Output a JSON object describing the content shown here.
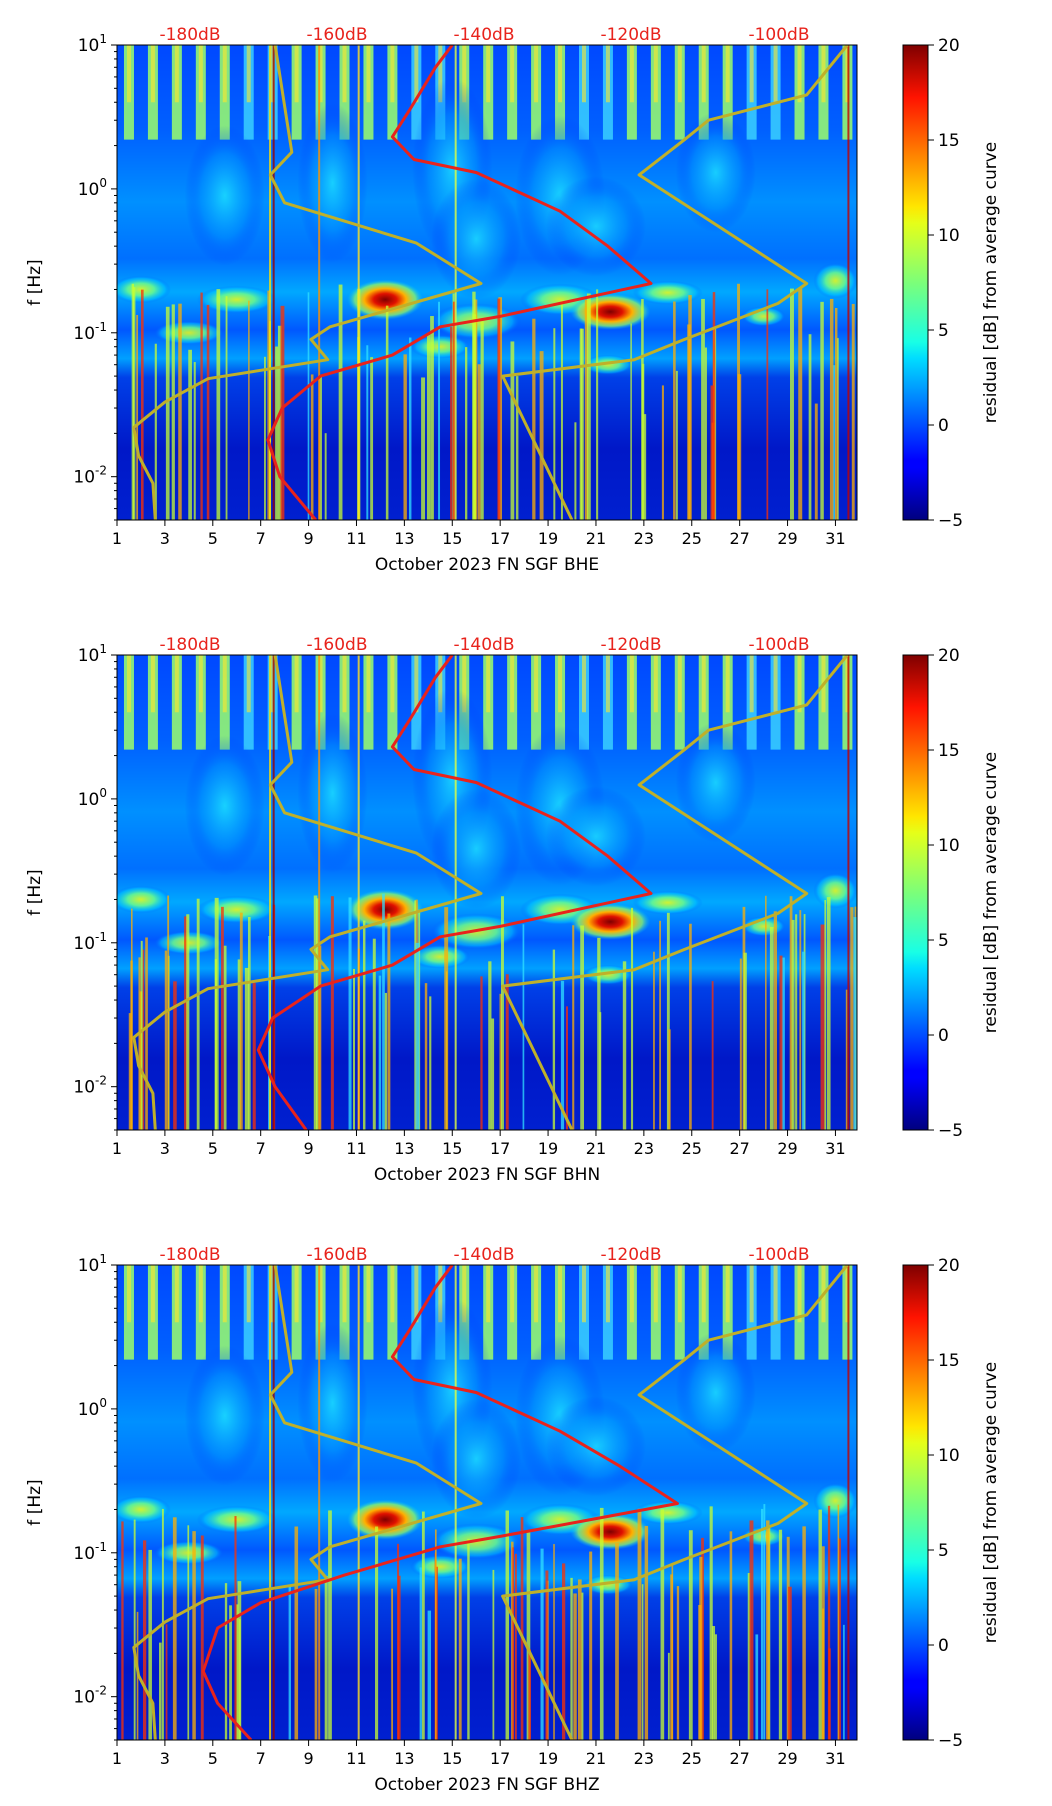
{
  "chart_data": [
    {
      "type": "heatmap",
      "panel": "BHE",
      "xlabel": "October 2023 FN SGF  BHE",
      "ylabel": "f [Hz]",
      "xlim": [
        1,
        31.9
      ],
      "ylim": [
        0.005,
        10
      ],
      "yscale": "log",
      "x_ticks": [
        "1",
        "3",
        "5",
        "7",
        "9",
        "11",
        "13",
        "15",
        "17",
        "19",
        "21",
        "23",
        "25",
        "27",
        "29",
        "31"
      ],
      "y_ticks": [
        {
          "base": "10",
          "exp": "1",
          "value": 10
        },
        {
          "base": "10",
          "exp": "0",
          "value": 1
        },
        {
          "base": "10",
          "exp": "-1",
          "value": 0.1
        },
        {
          "base": "10",
          "exp": "-2",
          "value": 0.01
        }
      ],
      "top_axis_labels": [
        "-180dB",
        "-160dB",
        "-140dB",
        "-120dB",
        "-100dB"
      ],
      "top_axis_values_db": [
        -180,
        -160,
        -140,
        -120,
        -100
      ],
      "colorbar": {
        "label": "residual [dB] from average curve",
        "min": -5,
        "max": 20,
        "ticks": [
          "20",
          "15",
          "10",
          "5",
          "0",
          "−5"
        ]
      },
      "series": [
        {
          "name": "",
          "color": "#bfb02a",
          "points": [
            [
              7.6,
              10
            ],
            [
              8.3,
              1.8
            ],
            [
              7.4,
              1.25
            ],
            [
              8,
              0.8
            ],
            [
              13.5,
              0.42
            ],
            [
              16.2,
              0.22
            ],
            [
              9.9,
              0.11
            ],
            [
              9.1,
              0.09
            ],
            [
              9.8,
              0.065
            ],
            [
              4.8,
              0.048
            ],
            [
              3,
              0.033
            ],
            [
              1.7,
              0.022
            ],
            [
              1.9,
              0.014
            ],
            [
              2.5,
              0.009
            ],
            [
              2.6,
              0.005
            ]
          ]
        },
        {
          "name": "",
          "color": "#bfb02a",
          "points": [
            [
              31.5,
              10
            ],
            [
              29.8,
              4.5
            ],
            [
              25.7,
              3
            ],
            [
              24.7,
              2.2
            ],
            [
              22.8,
              1.25
            ],
            [
              29.8,
              0.22
            ],
            [
              28.6,
              0.16
            ],
            [
              24.7,
              0.09
            ],
            [
              22.6,
              0.065
            ],
            [
              17.1,
              0.05
            ],
            [
              20,
              0.005
            ]
          ]
        },
        {
          "name": "",
          "color": "#e8231c",
          "points": [
            [
              15,
              10
            ],
            [
              14.3,
              7
            ],
            [
              13.2,
              3.5
            ],
            [
              12.5,
              2.3
            ],
            [
              13.4,
              1.6
            ],
            [
              16,
              1.3
            ],
            [
              19.5,
              0.7
            ],
            [
              21.5,
              0.4
            ],
            [
              23.3,
              0.22
            ],
            [
              17,
              0.13
            ],
            [
              14.5,
              0.11
            ],
            [
              12.5,
              0.07
            ],
            [
              9.5,
              0.05
            ],
            [
              7.9,
              0.03
            ],
            [
              7.3,
              0.018
            ],
            [
              7.8,
              0.01
            ],
            [
              9.3,
              0.005
            ]
          ]
        }
      ]
    },
    {
      "type": "heatmap",
      "panel": "BHN",
      "xlabel": "October 2023 FN SGF  BHN",
      "ylabel": "f [Hz]",
      "xlim": [
        1,
        31.9
      ],
      "ylim": [
        0.005,
        10
      ],
      "yscale": "log",
      "x_ticks": [
        "1",
        "3",
        "5",
        "7",
        "9",
        "11",
        "13",
        "15",
        "17",
        "19",
        "21",
        "23",
        "25",
        "27",
        "29",
        "31"
      ],
      "y_ticks": [
        {
          "base": "10",
          "exp": "1",
          "value": 10
        },
        {
          "base": "10",
          "exp": "0",
          "value": 1
        },
        {
          "base": "10",
          "exp": "-1",
          "value": 0.1
        },
        {
          "base": "10",
          "exp": "-2",
          "value": 0.01
        }
      ],
      "top_axis_labels": [
        "-180dB",
        "-160dB",
        "-140dB",
        "-120dB",
        "-100dB"
      ],
      "top_axis_values_db": [
        -180,
        -160,
        -140,
        -120,
        -100
      ],
      "colorbar": {
        "label": "residual [dB] from average curve",
        "min": -5,
        "max": 20,
        "ticks": [
          "20",
          "15",
          "10",
          "5",
          "0",
          "−5"
        ]
      },
      "series": [
        {
          "name": "",
          "color": "#bfb02a",
          "points": [
            [
              7.6,
              10
            ],
            [
              8.3,
              1.8
            ],
            [
              7.4,
              1.25
            ],
            [
              8,
              0.8
            ],
            [
              13.5,
              0.42
            ],
            [
              16.2,
              0.22
            ],
            [
              9.9,
              0.11
            ],
            [
              9.1,
              0.09
            ],
            [
              9.8,
              0.065
            ],
            [
              4.8,
              0.048
            ],
            [
              3,
              0.033
            ],
            [
              1.7,
              0.022
            ],
            [
              1.9,
              0.014
            ],
            [
              2.5,
              0.009
            ],
            [
              2.6,
              0.005
            ]
          ]
        },
        {
          "name": "",
          "color": "#bfb02a",
          "points": [
            [
              31.5,
              10
            ],
            [
              29.8,
              4.5
            ],
            [
              25.7,
              3
            ],
            [
              24.7,
              2.2
            ],
            [
              22.8,
              1.25
            ],
            [
              29.8,
              0.22
            ],
            [
              28.6,
              0.16
            ],
            [
              24.7,
              0.09
            ],
            [
              22.6,
              0.065
            ],
            [
              17.1,
              0.05
            ],
            [
              20,
              0.005
            ]
          ]
        },
        {
          "name": "",
          "color": "#e8231c",
          "points": [
            [
              15,
              10
            ],
            [
              14.3,
              7
            ],
            [
              13.2,
              3.5
            ],
            [
              12.5,
              2.3
            ],
            [
              13.4,
              1.6
            ],
            [
              16,
              1.3
            ],
            [
              19.5,
              0.7
            ],
            [
              21.5,
              0.4
            ],
            [
              23.3,
              0.22
            ],
            [
              17,
              0.13
            ],
            [
              14.5,
              0.11
            ],
            [
              12.5,
              0.07
            ],
            [
              9.5,
              0.05
            ],
            [
              7.5,
              0.03
            ],
            [
              6.9,
              0.018
            ],
            [
              7.6,
              0.01
            ],
            [
              8.9,
              0.005
            ]
          ]
        }
      ]
    },
    {
      "type": "heatmap",
      "panel": "BHZ",
      "xlabel": "October 2023 FN SGF  BHZ",
      "ylabel": "f [Hz]",
      "xlim": [
        1,
        31.9
      ],
      "ylim": [
        0.005,
        10
      ],
      "yscale": "log",
      "x_ticks": [
        "1",
        "3",
        "5",
        "7",
        "9",
        "11",
        "13",
        "15",
        "17",
        "19",
        "21",
        "23",
        "25",
        "27",
        "29",
        "31"
      ],
      "y_ticks": [
        {
          "base": "10",
          "exp": "1",
          "value": 10
        },
        {
          "base": "10",
          "exp": "0",
          "value": 1
        },
        {
          "base": "10",
          "exp": "-1",
          "value": 0.1
        },
        {
          "base": "10",
          "exp": "-2",
          "value": 0.01
        }
      ],
      "top_axis_labels": [
        "-180dB",
        "-160dB",
        "-140dB",
        "-120dB",
        "-100dB"
      ],
      "top_axis_values_db": [
        -180,
        -160,
        -140,
        -120,
        -100
      ],
      "colorbar": {
        "label": "residual [dB] from average curve",
        "min": -5,
        "max": 20,
        "ticks": [
          "20",
          "15",
          "10",
          "5",
          "0",
          "−5"
        ]
      },
      "series": [
        {
          "name": "",
          "color": "#bfb02a",
          "points": [
            [
              7.6,
              10
            ],
            [
              8.3,
              1.8
            ],
            [
              7.4,
              1.25
            ],
            [
              8,
              0.8
            ],
            [
              13.5,
              0.42
            ],
            [
              16.2,
              0.22
            ],
            [
              9.9,
              0.11
            ],
            [
              9.1,
              0.09
            ],
            [
              9.8,
              0.065
            ],
            [
              4.8,
              0.048
            ],
            [
              3,
              0.033
            ],
            [
              1.7,
              0.022
            ],
            [
              1.9,
              0.014
            ],
            [
              2.5,
              0.009
            ],
            [
              2.6,
              0.005
            ]
          ]
        },
        {
          "name": "",
          "color": "#bfb02a",
          "points": [
            [
              31.5,
              10
            ],
            [
              29.8,
              4.5
            ],
            [
              25.7,
              3
            ],
            [
              24.7,
              2.2
            ],
            [
              22.8,
              1.25
            ],
            [
              29.8,
              0.22
            ],
            [
              28.6,
              0.16
            ],
            [
              24.7,
              0.09
            ],
            [
              22.6,
              0.065
            ],
            [
              17.1,
              0.05
            ],
            [
              20,
              0.005
            ]
          ]
        },
        {
          "name": "",
          "color": "#e8231c",
          "points": [
            [
              15,
              10
            ],
            [
              14.3,
              7
            ],
            [
              13.2,
              3.5
            ],
            [
              12.5,
              2.3
            ],
            [
              13.4,
              1.6
            ],
            [
              16,
              1.3
            ],
            [
              19.5,
              0.7
            ],
            [
              22,
              0.4
            ],
            [
              24.4,
              0.22
            ],
            [
              17,
              0.13
            ],
            [
              14.5,
              0.11
            ],
            [
              10.5,
              0.07
            ],
            [
              7,
              0.045
            ],
            [
              5.2,
              0.03
            ],
            [
              4.6,
              0.015
            ],
            [
              5.2,
              0.009
            ],
            [
              6.6,
              0.005
            ]
          ]
        }
      ]
    }
  ]
}
